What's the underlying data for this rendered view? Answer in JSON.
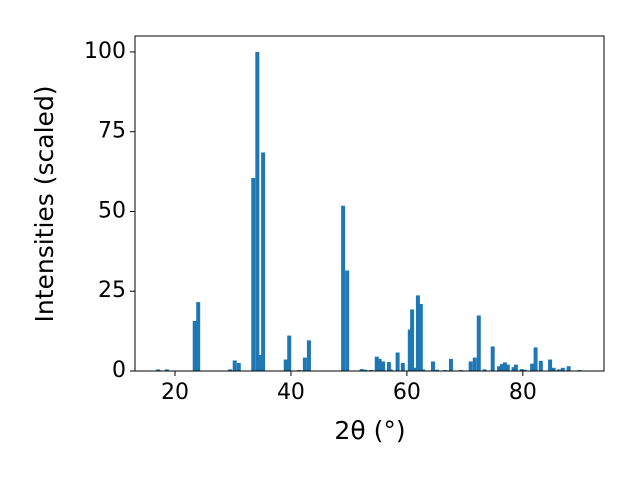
{
  "chart_data": {
    "type": "bar",
    "xlabel": "2θ (°)",
    "ylabel": "Intensities (scaled)",
    "x": [
      17.1,
      18.6,
      23.4,
      24.0,
      29.5,
      30.3,
      31.0,
      33.5,
      34.2,
      34.7,
      35.2,
      39.1,
      39.7,
      41.4,
      42.4,
      43.1,
      49.0,
      49.7,
      52.2,
      52.8,
      53.8,
      54.8,
      55.3,
      55.9,
      56.9,
      57.2,
      58.4,
      59.3,
      60.5,
      60.9,
      61.4,
      61.9,
      62.4,
      62.8,
      64.5,
      65.2,
      66.6,
      67.6,
      69.3,
      71.0,
      71.7,
      72.4,
      73.4,
      74.8,
      75.9,
      76.4,
      76.9,
      77.4,
      78.4,
      78.8,
      79.8,
      80.3,
      81.6,
      82.2,
      83.1,
      84.7,
      85.3,
      86.2,
      86.9,
      87.9,
      89.8
    ],
    "values": [
      0.5,
      0.5,
      15.7,
      21.6,
      0.5,
      3.3,
      2.5,
      60.5,
      100,
      5,
      68.5,
      3.6,
      11.1,
      0.3,
      4.2,
      9.6,
      51.8,
      31.5,
      0.6,
      0.4,
      0.3,
      4.5,
      3.8,
      3.0,
      2.8,
      0.5,
      5.8,
      2.5,
      13,
      19.3,
      1,
      23.7,
      21,
      0.5,
      3.0,
      0.4,
      0.3,
      3.8,
      0.3,
      3,
      4.2,
      17.4,
      0.5,
      7.7,
      1.5,
      2.2,
      2.7,
      2.0,
      1.2,
      2.0,
      0.6,
      0.4,
      2.3,
      7.4,
      3.2,
      3.6,
      1.0,
      0.5,
      1.0,
      1.5,
      0.3
    ],
    "color": "#1f77b4",
    "xlim": [
      13.1,
      94.0
    ],
    "xticks": [
      20,
      40,
      60,
      80
    ],
    "ylim": [
      0,
      105
    ],
    "yticks": [
      0,
      25,
      50,
      75,
      100
    ],
    "grid": false
  }
}
